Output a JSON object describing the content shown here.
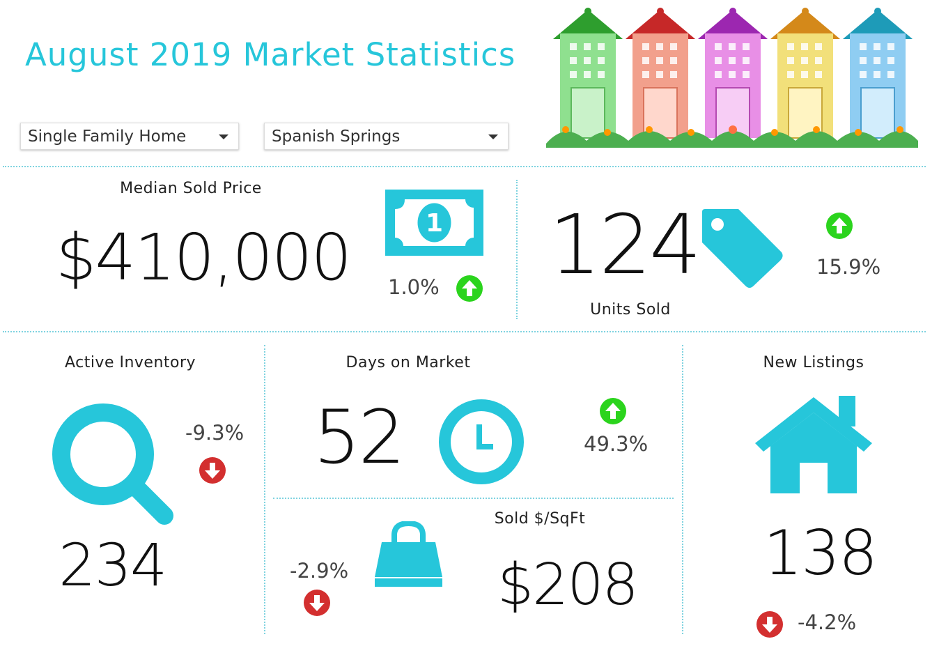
{
  "header": {
    "title": "August 2019 Market Statistics"
  },
  "filters": {
    "property_type": "Single Family Home",
    "area": "Spanish Springs"
  },
  "colors": {
    "accent": "#26c6da",
    "up": "#2bd41d",
    "down": "#d32f2f"
  },
  "metrics": {
    "median_sold_price": {
      "label": "Median Sold Price",
      "value": "$410,000",
      "change": "1.0%",
      "direction": "up",
      "icon": "money-bill-icon"
    },
    "units_sold": {
      "label": "Units Sold",
      "value": "124",
      "change": "15.9%",
      "direction": "up",
      "icon": "price-tag-icon"
    },
    "active_inventory": {
      "label": "Active Inventory",
      "value": "234",
      "change": "-9.3%",
      "direction": "down",
      "icon": "search-icon"
    },
    "days_on_market": {
      "label": "Days on Market",
      "value": "52",
      "change": "49.3%",
      "direction": "up",
      "icon": "clock-icon"
    },
    "sold_per_sqft": {
      "label": "Sold $/SqFt",
      "value": "$208",
      "change": "-2.9%",
      "direction": "down",
      "icon": "shopping-bag-icon"
    },
    "new_listings": {
      "label": "New Listings",
      "value": "138",
      "change": "-4.2%",
      "direction": "down",
      "icon": "house-icon"
    }
  }
}
